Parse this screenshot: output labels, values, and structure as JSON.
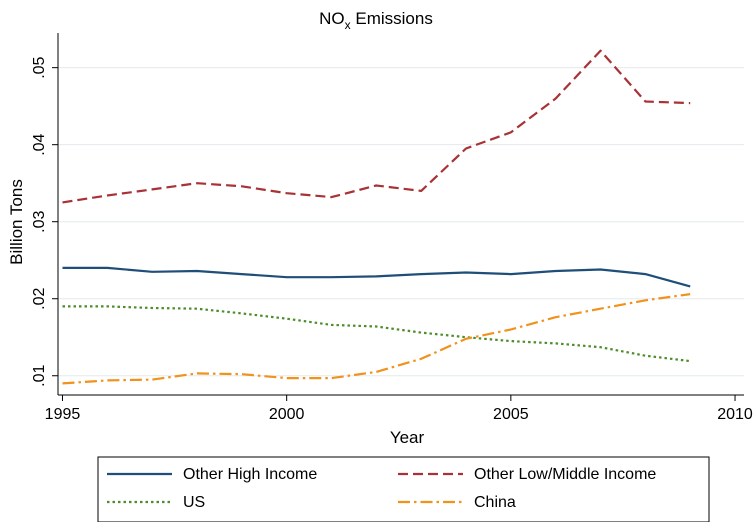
{
  "chart_data": {
    "type": "line",
    "title": "NO",
    "title_subscript": "x",
    "title_rest": " Emissions",
    "xlabel": "Year",
    "ylabel": "Billion Tons",
    "xlim": [
      1994.9,
      2010.2
    ],
    "ylim": [
      0.0075,
      0.0545
    ],
    "x_ticks": [
      1995,
      2000,
      2005,
      2010
    ],
    "x_tick_labels": [
      "1995",
      "2000",
      "2005",
      "2010"
    ],
    "y_ticks": [
      0.01,
      0.02,
      0.03,
      0.04,
      0.05
    ],
    "y_tick_labels": [
      ".01",
      ".02",
      ".03",
      ".04",
      ".05"
    ],
    "grid": true,
    "legend_position": "bottom",
    "x": [
      1995,
      1996,
      1997,
      1998,
      1999,
      2000,
      2001,
      2002,
      2003,
      2004,
      2005,
      2006,
      2007,
      2008,
      2009
    ],
    "series": [
      {
        "name": "Other High Income",
        "color": "#1f4e79",
        "style": "solid",
        "values": [
          0.024,
          0.024,
          0.0235,
          0.0236,
          0.0232,
          0.0228,
          0.0228,
          0.0229,
          0.0232,
          0.0234,
          0.0232,
          0.0236,
          0.0238,
          0.0232,
          0.0216
        ]
      },
      {
        "name": "Other Low/Middle Income",
        "color": "#a83235",
        "style": "dashed",
        "values": [
          0.0325,
          0.0334,
          0.0342,
          0.035,
          0.0346,
          0.0337,
          0.0332,
          0.0347,
          0.034,
          0.0395,
          0.0416,
          0.046,
          0.0522,
          0.0456,
          0.0454
        ]
      },
      {
        "name": "US",
        "color": "#4c8c2b",
        "style": "dotted",
        "values": [
          0.019,
          0.019,
          0.0188,
          0.0187,
          0.0181,
          0.0174,
          0.0166,
          0.0164,
          0.0156,
          0.015,
          0.0145,
          0.0142,
          0.0137,
          0.0126,
          0.0119
        ]
      },
      {
        "name": "China",
        "color": "#f0921c",
        "style": "dashdot",
        "values": [
          0.009,
          0.0094,
          0.0095,
          0.0103,
          0.0102,
          0.0097,
          0.0097,
          0.0105,
          0.0122,
          0.0148,
          0.016,
          0.0176,
          0.0187,
          0.0198,
          0.0206
        ]
      }
    ]
  }
}
